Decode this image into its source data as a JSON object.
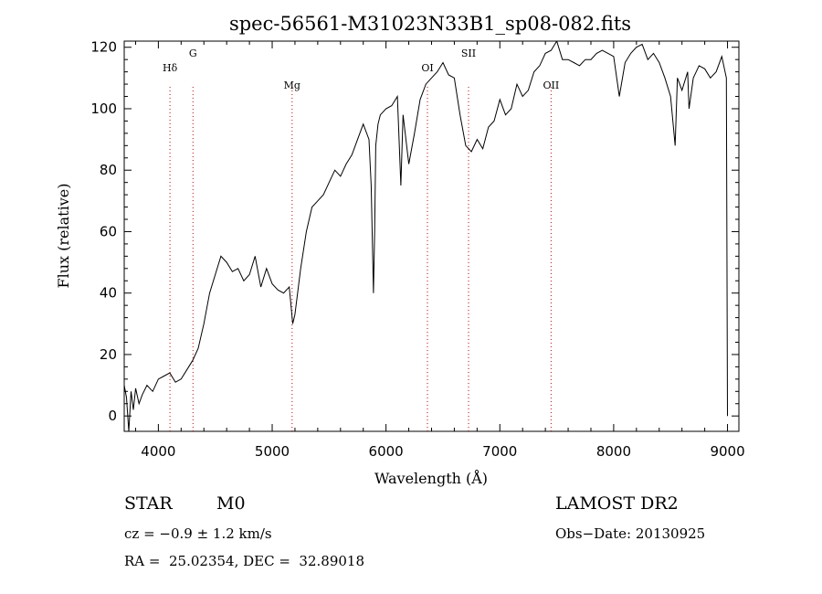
{
  "chart_data": {
    "type": "line",
    "title": "spec-56561-M31023N33B1_sp08-082.fits",
    "xlabel": "Wavelength (Å)",
    "ylabel": "Flux (relative)",
    "xlim": [
      3700,
      9100
    ],
    "ylim": [
      -5,
      122
    ],
    "xticks": [
      4000,
      5000,
      6000,
      7000,
      8000,
      9000
    ],
    "yticks": [
      0,
      20,
      40,
      60,
      80,
      100,
      120
    ],
    "grid": false,
    "line_color": "#000000",
    "marker_color": "#cc0000",
    "lines": [
      {
        "label": "Hδ",
        "x": 4102
      },
      {
        "label": "G",
        "x": 4304
      },
      {
        "label": "Mg",
        "x": 5175
      },
      {
        "label": "OI",
        "x": 6364
      },
      {
        "label": "SII",
        "x": 6725
      },
      {
        "label": "OII",
        "x": 7450
      }
    ],
    "series": [
      {
        "x": [
          3700,
          3720,
          3740,
          3760,
          3780,
          3800,
          3830,
          3860,
          3900,
          3950,
          4000,
          4050,
          4100,
          4150,
          4200,
          4250,
          4300,
          4350,
          4400,
          4450,
          4500,
          4550,
          4600,
          4650,
          4700,
          4750,
          4800,
          4850,
          4900,
          4950,
          5000,
          5050,
          5100,
          5150,
          5180,
          5200,
          5250,
          5300,
          5350,
          5400,
          5450,
          5500,
          5550,
          5600,
          5650,
          5700,
          5750,
          5800,
          5850,
          5870,
          5890,
          5900,
          5910,
          5930,
          5950,
          6000,
          6050,
          6100,
          6130,
          6150,
          6200,
          6250,
          6300,
          6350,
          6400,
          6450,
          6500,
          6550,
          6600,
          6650,
          6700,
          6750,
          6800,
          6850,
          6900,
          6950,
          7000,
          7050,
          7100,
          7150,
          7200,
          7250,
          7300,
          7350,
          7400,
          7450,
          7500,
          7550,
          7600,
          7650,
          7700,
          7750,
          7800,
          7850,
          7900,
          7950,
          8000,
          8050,
          8100,
          8150,
          8200,
          8250,
          8300,
          8350,
          8400,
          8450,
          8500,
          8540,
          8560,
          8600,
          8650,
          8662,
          8700,
          8750,
          8800,
          8850,
          8900,
          8950,
          8990,
          9000
        ],
        "y": [
          10,
          6,
          -5,
          8,
          2,
          9,
          4,
          7,
          10,
          8,
          12,
          13,
          14,
          11,
          12,
          15,
          18,
          22,
          30,
          40,
          46,
          52,
          50,
          47,
          48,
          44,
          46,
          52,
          42,
          48,
          43,
          41,
          40,
          42,
          30,
          33,
          48,
          60,
          68,
          70,
          72,
          76,
          80,
          78,
          82,
          85,
          90,
          95,
          90,
          75,
          40,
          60,
          88,
          95,
          98,
          100,
          101,
          104,
          75,
          98,
          82,
          92,
          103,
          108,
          110,
          112,
          115,
          111,
          110,
          98,
          88,
          86,
          90,
          87,
          94,
          96,
          103,
          98,
          100,
          108,
          104,
          106,
          112,
          114,
          118,
          119,
          122,
          116,
          116,
          115,
          114,
          116,
          116,
          118,
          119,
          118,
          117,
          104,
          115,
          118,
          120,
          121,
          116,
          118,
          115,
          110,
          104,
          88,
          110,
          106,
          112,
          100,
          110,
          114,
          113,
          110,
          112,
          117,
          110,
          0
        ]
      }
    ]
  },
  "info": {
    "class": "STAR",
    "subclass": "M0",
    "survey": "LAMOST DR2",
    "cz": "cz = −0.9 ± 1.2 km/s",
    "obsdate": "Obs−Date: 20130925",
    "coords": "RA =  25.02354, DEC =  32.89018"
  }
}
